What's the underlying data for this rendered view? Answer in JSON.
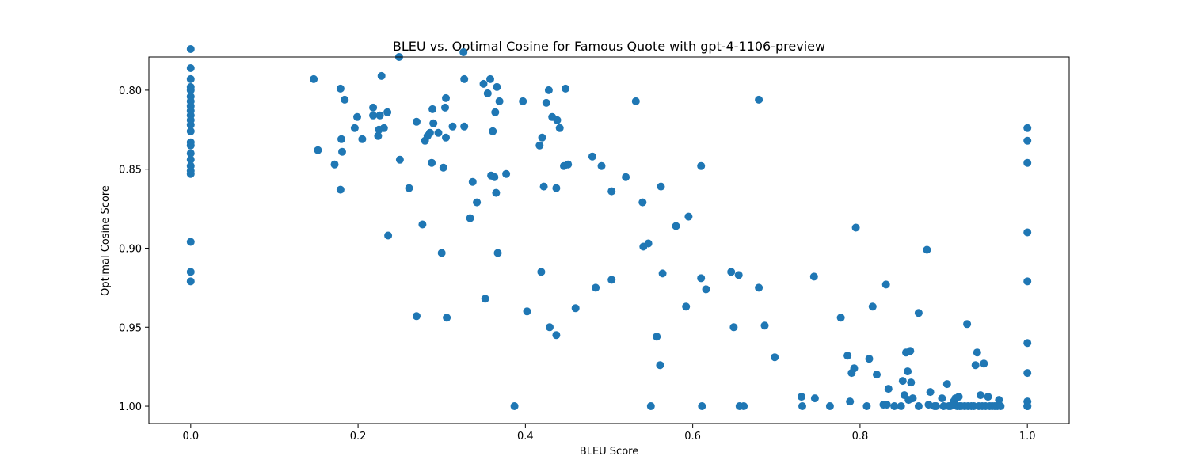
{
  "chart_data": {
    "type": "scatter",
    "title": "BLEU vs. Optimal Cosine for Famous Quote with gpt-4-1106-preview",
    "xlabel": "BLEU Score",
    "ylabel": "Optimal Cosine Score",
    "xlim": [
      -0.05,
      1.05
    ],
    "ylim": [
      1.011,
      0.779
    ],
    "y_inverted": true,
    "x_ticks": [
      {
        "value": 0.0,
        "label": "0.0"
      },
      {
        "value": 0.2,
        "label": "0.2"
      },
      {
        "value": 0.4,
        "label": "0.4"
      },
      {
        "value": 0.6,
        "label": "0.6"
      },
      {
        "value": 0.8,
        "label": "0.8"
      },
      {
        "value": 1.0,
        "label": "1.0"
      }
    ],
    "y_ticks": [
      {
        "value": 0.8,
        "label": "0.80"
      },
      {
        "value": 0.85,
        "label": "0.85"
      },
      {
        "value": 0.9,
        "label": "0.90"
      },
      {
        "value": 0.95,
        "label": "0.95"
      },
      {
        "value": 1.0,
        "label": "1.00"
      }
    ],
    "grid": false,
    "marker_color": "#1f77b4",
    "points": [
      [
        0.0,
        0.774
      ],
      [
        0.0,
        0.786
      ],
      [
        0.0,
        0.793
      ],
      [
        0.0,
        0.798
      ],
      [
        0.0,
        0.8
      ],
      [
        0.0,
        0.804
      ],
      [
        0.0,
        0.807
      ],
      [
        0.0,
        0.81
      ],
      [
        0.0,
        0.813
      ],
      [
        0.0,
        0.816
      ],
      [
        0.0,
        0.819
      ],
      [
        0.0,
        0.822
      ],
      [
        0.0,
        0.826
      ],
      [
        0.0,
        0.833
      ],
      [
        0.0,
        0.835
      ],
      [
        0.0,
        0.84
      ],
      [
        0.0,
        0.844
      ],
      [
        0.0,
        0.848
      ],
      [
        0.0,
        0.851
      ],
      [
        0.0,
        0.853
      ],
      [
        0.0,
        0.896
      ],
      [
        0.0,
        0.915
      ],
      [
        0.0,
        0.921
      ],
      [
        0.147,
        0.793
      ],
      [
        0.152,
        0.838
      ],
      [
        0.172,
        0.847
      ],
      [
        0.179,
        0.863
      ],
      [
        0.179,
        0.799
      ],
      [
        0.18,
        0.831
      ],
      [
        0.181,
        0.839
      ],
      [
        0.184,
        0.806
      ],
      [
        0.196,
        0.824
      ],
      [
        0.199,
        0.817
      ],
      [
        0.205,
        0.831
      ],
      [
        0.218,
        0.811
      ],
      [
        0.218,
        0.816
      ],
      [
        0.224,
        0.829
      ],
      [
        0.225,
        0.825
      ],
      [
        0.226,
        0.816
      ],
      [
        0.228,
        0.791
      ],
      [
        0.231,
        0.824
      ],
      [
        0.235,
        0.814
      ],
      [
        0.236,
        0.892
      ],
      [
        0.249,
        0.779
      ],
      [
        0.25,
        0.844
      ],
      [
        0.261,
        0.862
      ],
      [
        0.27,
        0.943
      ],
      [
        0.27,
        0.82
      ],
      [
        0.277,
        0.885
      ],
      [
        0.28,
        0.832
      ],
      [
        0.283,
        0.829
      ],
      [
        0.286,
        0.827
      ],
      [
        0.288,
        0.846
      ],
      [
        0.289,
        0.812
      ],
      [
        0.29,
        0.821
      ],
      [
        0.296,
        0.827
      ],
      [
        0.3,
        0.903
      ],
      [
        0.302,
        0.849
      ],
      [
        0.304,
        0.811
      ],
      [
        0.305,
        0.805
      ],
      [
        0.305,
        0.83
      ],
      [
        0.306,
        0.944
      ],
      [
        0.313,
        0.823
      ],
      [
        0.326,
        0.776
      ],
      [
        0.327,
        0.793
      ],
      [
        0.327,
        0.823
      ],
      [
        0.334,
        0.881
      ],
      [
        0.337,
        0.858
      ],
      [
        0.342,
        0.871
      ],
      [
        0.35,
        0.796
      ],
      [
        0.352,
        0.932
      ],
      [
        0.355,
        0.802
      ],
      [
        0.358,
        0.793
      ],
      [
        0.359,
        0.854
      ],
      [
        0.361,
        0.826
      ],
      [
        0.363,
        0.855
      ],
      [
        0.364,
        0.814
      ],
      [
        0.365,
        0.865
      ],
      [
        0.366,
        0.798
      ],
      [
        0.367,
        0.903
      ],
      [
        0.369,
        0.807
      ],
      [
        0.377,
        0.853
      ],
      [
        0.387,
        1.0
      ],
      [
        0.397,
        0.807
      ],
      [
        0.402,
        0.94
      ],
      [
        0.417,
        0.835
      ],
      [
        0.419,
        0.915
      ],
      [
        0.42,
        0.83
      ],
      [
        0.422,
        0.861
      ],
      [
        0.425,
        0.808
      ],
      [
        0.428,
        0.8
      ],
      [
        0.429,
        0.95
      ],
      [
        0.432,
        0.817
      ],
      [
        0.437,
        0.955
      ],
      [
        0.437,
        0.862
      ],
      [
        0.438,
        0.819
      ],
      [
        0.441,
        0.824
      ],
      [
        0.446,
        0.848
      ],
      [
        0.448,
        0.799
      ],
      [
        0.451,
        0.847
      ],
      [
        0.46,
        0.938
      ],
      [
        0.48,
        0.842
      ],
      [
        0.484,
        0.925
      ],
      [
        0.491,
        0.848
      ],
      [
        0.503,
        0.864
      ],
      [
        0.503,
        0.92
      ],
      [
        0.52,
        0.855
      ],
      [
        0.532,
        0.807
      ],
      [
        0.54,
        0.871
      ],
      [
        0.541,
        0.899
      ],
      [
        0.547,
        0.897
      ],
      [
        0.55,
        1.0
      ],
      [
        0.557,
        0.956
      ],
      [
        0.561,
        0.974
      ],
      [
        0.562,
        0.861
      ],
      [
        0.564,
        0.916
      ],
      [
        0.58,
        0.886
      ],
      [
        0.592,
        0.937
      ],
      [
        0.595,
        0.88
      ],
      [
        0.61,
        0.848
      ],
      [
        0.61,
        0.919
      ],
      [
        0.611,
        1.0
      ],
      [
        0.616,
        0.926
      ],
      [
        0.646,
        0.915
      ],
      [
        0.649,
        0.95
      ],
      [
        0.655,
        0.917
      ],
      [
        0.656,
        1.0
      ],
      [
        0.661,
        1.0
      ],
      [
        0.679,
        0.806
      ],
      [
        0.679,
        0.925
      ],
      [
        0.686,
        0.949
      ],
      [
        0.698,
        0.969
      ],
      [
        0.73,
        0.994
      ],
      [
        0.731,
        1.0
      ],
      [
        0.745,
        0.918
      ],
      [
        0.746,
        0.995
      ],
      [
        0.764,
        1.0
      ],
      [
        0.777,
        0.944
      ],
      [
        0.785,
        0.968
      ],
      [
        0.788,
        0.997
      ],
      [
        0.79,
        0.979
      ],
      [
        0.793,
        0.976
      ],
      [
        0.795,
        0.887
      ],
      [
        0.808,
        1.0
      ],
      [
        0.811,
        0.97
      ],
      [
        0.815,
        0.937
      ],
      [
        0.82,
        0.98
      ],
      [
        0.828,
        0.999
      ],
      [
        0.831,
        0.923
      ],
      [
        0.832,
        0.999
      ],
      [
        0.834,
        0.989
      ],
      [
        0.841,
        1.0
      ],
      [
        0.849,
        1.0
      ],
      [
        0.851,
        0.984
      ],
      [
        0.853,
        0.993
      ],
      [
        0.855,
        0.966
      ],
      [
        0.857,
        0.978
      ],
      [
        0.858,
        0.996
      ],
      [
        0.86,
        0.965
      ],
      [
        0.861,
        0.985
      ],
      [
        0.863,
        0.995
      ],
      [
        0.87,
        0.941
      ],
      [
        0.87,
        1.0
      ],
      [
        0.88,
        0.901
      ],
      [
        0.882,
        0.999
      ],
      [
        0.884,
        0.991
      ],
      [
        0.889,
        1.0
      ],
      [
        0.891,
        1.0
      ],
      [
        0.898,
        0.995
      ],
      [
        0.9,
        1.0
      ],
      [
        0.904,
        0.986
      ],
      [
        0.906,
        1.0
      ],
      [
        0.908,
        1.0
      ],
      [
        0.912,
        0.997
      ],
      [
        0.914,
        0.995
      ],
      [
        0.916,
        1.0
      ],
      [
        0.918,
        0.994
      ],
      [
        0.919,
        1.0
      ],
      [
        0.921,
        1.0
      ],
      [
        0.925,
        1.0
      ],
      [
        0.928,
        0.948
      ],
      [
        0.929,
        1.0
      ],
      [
        0.933,
        1.0
      ],
      [
        0.936,
        1.0
      ],
      [
        0.938,
        0.974
      ],
      [
        0.94,
        0.966
      ],
      [
        0.942,
        1.0
      ],
      [
        0.944,
        0.993
      ],
      [
        0.946,
        1.0
      ],
      [
        0.948,
        0.973
      ],
      [
        0.95,
        1.0
      ],
      [
        0.953,
        0.994
      ],
      [
        0.955,
        1.0
      ],
      [
        0.958,
        1.0
      ],
      [
        0.961,
        1.0
      ],
      [
        0.964,
        1.0
      ],
      [
        0.966,
        0.996
      ],
      [
        0.968,
        1.0
      ],
      [
        1.0,
        0.824
      ],
      [
        1.0,
        0.832
      ],
      [
        1.0,
        0.846
      ],
      [
        1.0,
        0.89
      ],
      [
        1.0,
        0.921
      ],
      [
        1.0,
        0.96
      ],
      [
        1.0,
        0.979
      ],
      [
        1.0,
        0.997
      ],
      [
        1.0,
        1.0
      ],
      [
        1.0,
        1.0
      ],
      [
        1.0,
        1.0
      ]
    ]
  }
}
